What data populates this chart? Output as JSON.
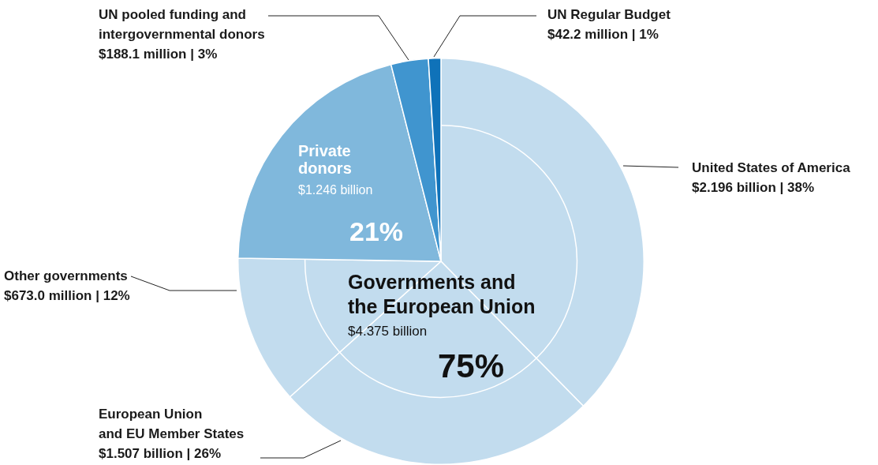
{
  "chart_data": {
    "type": "pie",
    "categories": [
      "United States of America",
      "European Union and EU Member States",
      "Other governments",
      "Private donors",
      "UN pooled funding and intergovernmental donors",
      "UN Regular Budget"
    ],
    "values": [
      38,
      26,
      12,
      21,
      3,
      1
    ],
    "colors": [
      "#c2dcee",
      "#c2dcee",
      "#c2dcee",
      "#80b8dc",
      "#4095cf",
      "#0f72b9"
    ],
    "value_labels": [
      "$2.196 billion | 38%",
      "$1.507 billion | 26%",
      "$673.0 million | 12%",
      "21%",
      "$188.1 million | 3%",
      "$42.2 million | 1%"
    ],
    "annotations": [
      "Governments and the European Union",
      "$4.375 billion",
      "75%",
      "$1.246 billion"
    ],
    "legend": false
  }
}
